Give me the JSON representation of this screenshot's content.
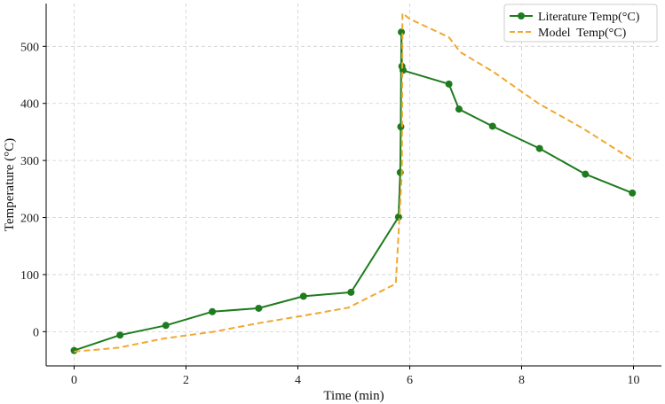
{
  "chart_data": {
    "type": "line",
    "xlabel": "Time (min)",
    "ylabel": "Temperature (°C)",
    "xlim": [
      -0.5,
      10.5
    ],
    "ylim": [
      -60,
      575
    ],
    "xticks": [
      0,
      2,
      4,
      6,
      8,
      10
    ],
    "yticks": [
      0,
      100,
      200,
      300,
      400,
      500
    ],
    "grid": true,
    "legend_position": "top-right",
    "series": [
      {
        "name": "Literature Temp(°C)",
        "color": "#1e7b1e",
        "style": "solid-markers",
        "x": [
          0.0,
          0.82,
          1.64,
          2.47,
          3.3,
          4.1,
          4.95,
          5.8,
          5.83,
          5.84,
          5.85,
          5.86,
          5.88,
          6.7,
          6.88,
          7.48,
          8.32,
          9.14,
          9.98
        ],
        "y": [
          -33,
          -6,
          11,
          35,
          41,
          62,
          69,
          201,
          279,
          359,
          525,
          465,
          458,
          434,
          390,
          360,
          321,
          276,
          243
        ]
      },
      {
        "name": "Model  Temp(°C)",
        "color": "#f0a830",
        "style": "dashed",
        "x": [
          0.0,
          0.8,
          1.6,
          2.5,
          3.3,
          4.1,
          4.9,
          5.75,
          5.86,
          5.87,
          6.0,
          6.7,
          6.9,
          7.5,
          8.3,
          9.1,
          10.0
        ],
        "y": [
          -35,
          -28,
          -12,
          0,
          15,
          28,
          42,
          84,
          280,
          558,
          548,
          516,
          490,
          455,
          400,
          356,
          300
        ]
      }
    ]
  }
}
